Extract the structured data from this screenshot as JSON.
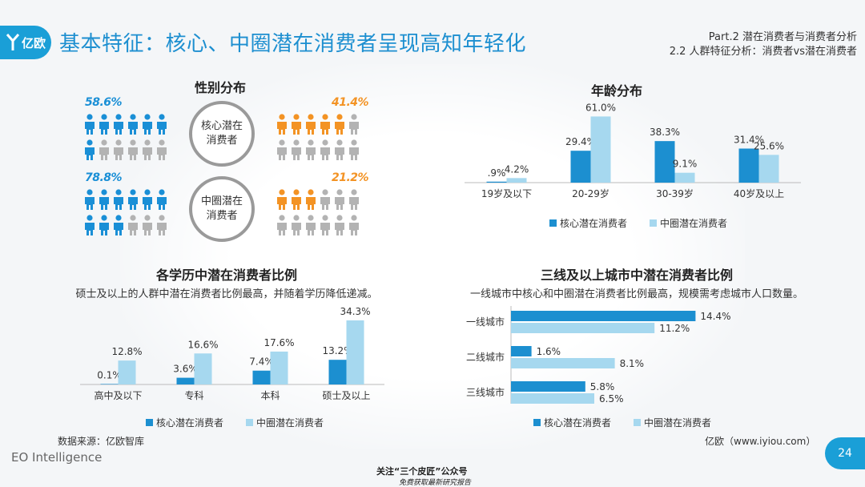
{
  "header": {
    "logo_text": "亿欧",
    "title": "基本特征：核心、中圈潜在消费者呈现高知年轻化",
    "part": "Part.2 潜在消费者与消费者分析",
    "subsection": "2.2 人群特征分析：消费者vs潜在消费者"
  },
  "colors": {
    "core": "#1c8fd0",
    "middle": "#a6d8ef",
    "male": "#1a8fd6",
    "female": "#f39324",
    "inactive": "#b3b3b3",
    "accent": "#1a9fd7"
  },
  "gender": {
    "title": "性别分布",
    "icon": "person-icon",
    "rows": [
      {
        "circle_label": "核心潜在消费者",
        "male_pct": "58.6%",
        "female_pct": "41.4%",
        "male_share": 0.586,
        "female_share": 0.414
      },
      {
        "circle_label": "中圈潜在消费者",
        "male_pct": "78.8%",
        "female_pct": "21.2%",
        "male_share": 0.788,
        "female_share": 0.212
      }
    ]
  },
  "age": {
    "title": "年龄分布"
  },
  "education": {
    "title": "各学历中潜在消费者比例",
    "subtitle": "硕士及以上的人群中潜在消费者比例最高，并随着学历降低递减。"
  },
  "city": {
    "title": "三线及以上城市中潜在消费者比例",
    "subtitle": "一线城市中核心和中圈潜在消费者比例最高，规模需考虑城市人口数量。"
  },
  "legend": {
    "core": "核心潜在消费者",
    "middle": "中圈潜在消费者"
  },
  "chart_data": [
    {
      "type": "bar",
      "title": "年龄分布",
      "categories": [
        "19岁及以下",
        "20-29岁",
        "30-39岁",
        "40岁及以上"
      ],
      "series": [
        {
          "name": "核心潜在消费者",
          "values": [
            0.9,
            29.4,
            38.3,
            31.4
          ],
          "labels": [
            ".9%",
            "29.4%",
            "38.3%",
            "31.4%"
          ]
        },
        {
          "name": "中圈潜在消费者",
          "values": [
            4.2,
            61.0,
            9.1,
            25.6
          ],
          "labels": [
            "4.2%",
            "61.0%",
            "9.1%",
            "25.6%"
          ]
        }
      ],
      "ylim": [
        0,
        65
      ],
      "legend": "bottom",
      "grid": false
    },
    {
      "type": "bar",
      "title": "各学历中潜在消费者比例",
      "categories": [
        "高中及以下",
        "专科",
        "本科",
        "硕士及以上"
      ],
      "series": [
        {
          "name": "核心潜在消费者",
          "values": [
            0.1,
            3.6,
            7.4,
            13.2
          ],
          "labels": [
            "0.1%",
            "3.6%",
            "7.4%",
            "13.2%"
          ]
        },
        {
          "name": "中圈潜在消费者",
          "values": [
            12.8,
            16.6,
            17.6,
            34.3
          ],
          "labels": [
            "12.8%",
            "16.6%",
            "17.6%",
            "34.3%"
          ]
        }
      ],
      "ylim": [
        0,
        36
      ],
      "legend": "bottom",
      "grid": false
    },
    {
      "type": "bar",
      "orientation": "horizontal",
      "title": "三线及以上城市中潜在消费者比例",
      "categories": [
        "一线城市",
        "二线城市",
        "三线城市"
      ],
      "series": [
        {
          "name": "核心潜在消费者",
          "values": [
            14.4,
            1.6,
            5.8
          ],
          "labels": [
            "14.4%",
            "1.6%",
            "5.8%"
          ]
        },
        {
          "name": "中圈潜在消费者",
          "values": [
            11.2,
            8.1,
            6.5
          ],
          "labels": [
            "11.2%",
            "8.1%",
            "6.5%"
          ]
        }
      ],
      "xlim": [
        0,
        15
      ],
      "legend": "bottom",
      "grid": false
    }
  ],
  "footer": {
    "source": "数据来源：亿欧智库",
    "brand": "EO Intelligence",
    "site": "亿欧（www.iyiou.com）",
    "page": "24",
    "note": "关注“三个皮匠”公众号",
    "note2": "免费获取最新研究报告"
  }
}
